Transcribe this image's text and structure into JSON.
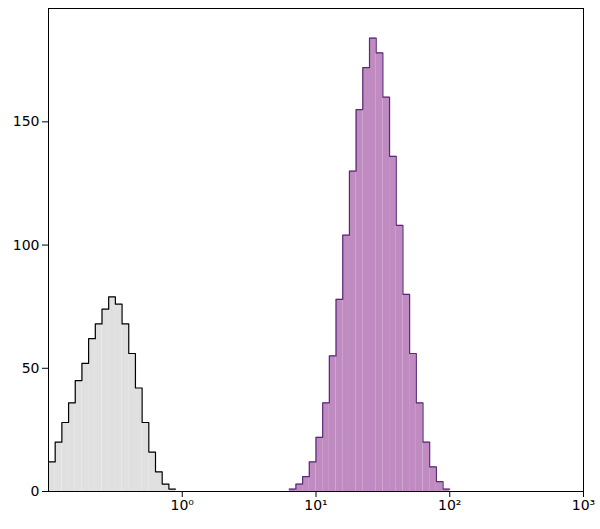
{
  "chart_data": {
    "type": "histogram",
    "log": "x",
    "xlim": [
      0.1,
      1000
    ],
    "xticks": [
      {
        "value": 1,
        "label": "10⁰"
      },
      {
        "value": 10,
        "label": "10¹"
      },
      {
        "value": 100,
        "label": "10²"
      },
      {
        "value": 1000,
        "label": "10³"
      }
    ],
    "ylim": [
      0,
      196
    ],
    "yticks": [
      0,
      50,
      100,
      150
    ],
    "grid": false,
    "series": [
      {
        "color": "#e0e0e0",
        "bins": [
          0.1,
          0.1122,
          0.1259,
          0.1413,
          0.1585,
          0.1778,
          0.1995,
          0.2239,
          0.2512,
          0.2818,
          0.3162,
          0.3548,
          0.3981,
          0.4467,
          0.5012,
          0.5623,
          0.631,
          0.7079,
          0.7943,
          0.8913
        ],
        "values": [
          12,
          20,
          28,
          36,
          45,
          52,
          62,
          68,
          74,
          79,
          76,
          68,
          56,
          42,
          28,
          16,
          8,
          3,
          1
        ]
      },
      {
        "color": "#c08bc1",
        "bins": [
          6.3096,
          7.0795,
          7.9433,
          8.9125,
          10,
          11.2202,
          12.5893,
          14.1254,
          15.8489,
          17.7828,
          19.9526,
          22.3872,
          25.1189,
          28.1838,
          31.6228,
          35.4813,
          39.8107,
          44.6684,
          50.1187,
          56.2341,
          63.0957,
          70.7946,
          79.4328,
          89.1251,
          100
        ],
        "values": [
          1,
          3,
          6,
          12,
          22,
          36,
          55,
          78,
          104,
          130,
          155,
          172,
          184,
          178,
          160,
          136,
          108,
          80,
          56,
          36,
          20,
          10,
          4,
          1
        ]
      }
    ]
  }
}
